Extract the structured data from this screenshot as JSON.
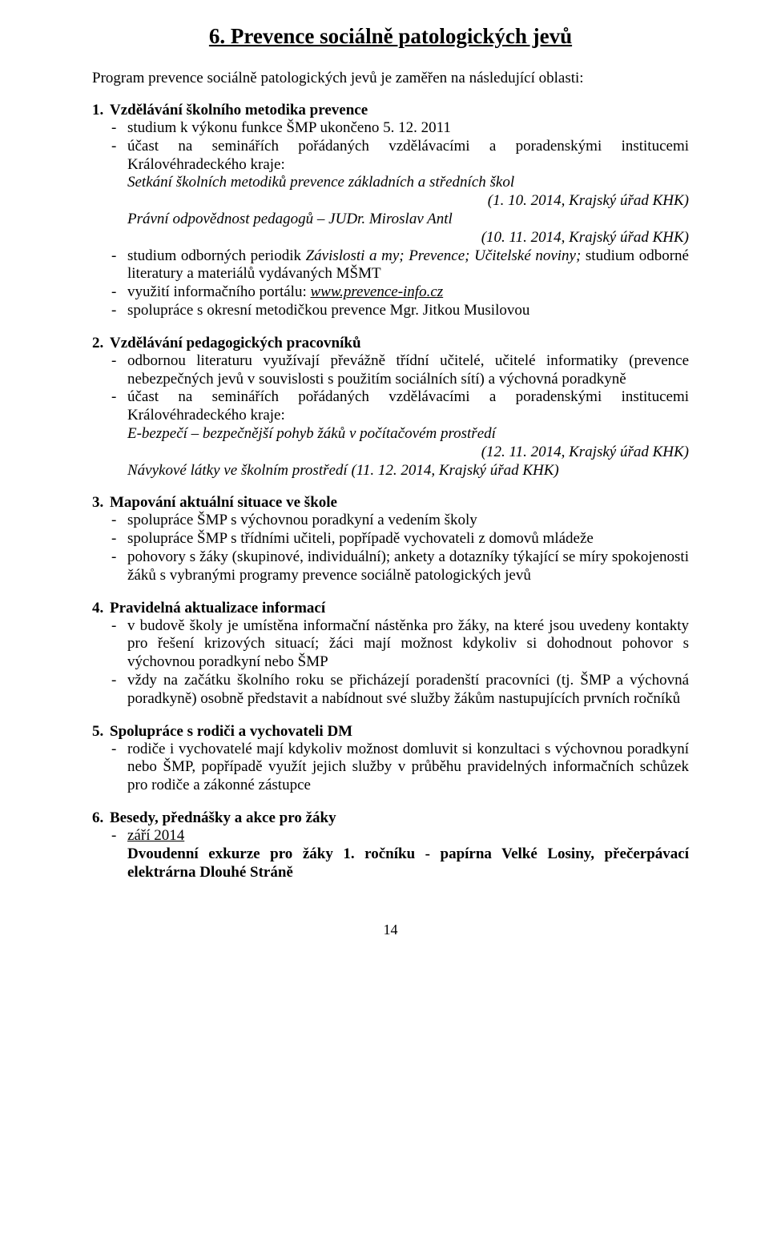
{
  "colors": {
    "background": "#ffffff",
    "text": "#000000"
  },
  "typography": {
    "font_family": "Times New Roman",
    "body_size_pt": 14,
    "title_size_pt": 20
  },
  "page_number": "14",
  "title": "6. Prevence sociálně patologických jevů",
  "intro": "Program prevence sociálně patologických jevů je zaměřen na následující oblasti:",
  "s1": {
    "num": "1.",
    "head": "Vzdělávání školního metodika prevence",
    "i1": "studium k výkonu funkce ŠMP ukončeno 5. 12. 2011",
    "i2": "účast na seminářích pořádaných vzdělávacími a poradenskými institucemi Královéhradeckého kraje:",
    "i2a": "Setkání školních metodiků prevence základních a středních škol",
    "i2a_date": "(1. 10. 2014, Krajský úřad KHK)",
    "i2b": "Právní odpovědnost pedagogů – JUDr. Miroslav Antl",
    "i2b_date": "(10. 11. 2014, Krajský úřad KHK)",
    "i3a": "studium odborných periodik ",
    "i3b": "Závislosti a my; Prevence; Učitelské noviny;",
    "i3c": " studium odborné literatury a materiálů vydávaných MŠMT",
    "i4a": "využití informačního portálu: ",
    "i4b": "www.prevence-info.cz",
    "i5": "spolupráce s okresní metodičkou prevence Mgr. Jitkou Musilovou"
  },
  "s2": {
    "num": "2.",
    "head": "Vzdělávání pedagogických pracovníků",
    "i1": "odbornou literaturu využívají převážně třídní učitelé, učitelé informatiky (prevence nebezpečných jevů v souvislosti s použitím sociálních sítí) a výchovná poradkyně",
    "i2": "účast na seminářích pořádaných vzdělávacími a poradenskými institucemi Královéhradeckého kraje:",
    "i2a": "E-bezpečí – bezpečnější pohyb žáků v počítačovém prostředí",
    "i2a_date": "(12. 11. 2014, Krajský úřad KHK)",
    "i2b": "Návykové látky ve školním prostředí (11. 12. 2014, Krajský úřad KHK)"
  },
  "s3": {
    "num": "3.",
    "head": "Mapování aktuální situace ve škole",
    "i1": "spolupráce ŠMP s výchovnou poradkyní a vedením školy",
    "i2": "spolupráce ŠMP s třídními učiteli, popřípadě vychovateli z domovů mládeže",
    "i3": "pohovory s žáky (skupinové, individuální); ankety a dotazníky týkající se míry spokojenosti žáků s vybranými programy prevence sociálně patologických jevů"
  },
  "s4": {
    "num": "4.",
    "head": "Pravidelná aktualizace informací",
    "i1": "v budově školy je umístěna informační nástěnka pro žáky, na které jsou uvedeny kontakty pro řešení krizových situací; žáci mají možnost kdykoliv si dohodnout pohovor s výchovnou poradkyní nebo ŠMP",
    "i2": "vždy na začátku školního roku se přicházejí poradenští pracovníci (tj. ŠMP a výchovná poradkyně) osobně představit a nabídnout své služby žákům nastupujících prvních ročníků"
  },
  "s5": {
    "num": "5.",
    "head": "Spolupráce s rodiči a vychovateli DM",
    "i1": "rodiče i vychovatelé mají kdykoliv možnost domluvit si konzultaci s výchovnou poradkyní nebo ŠMP, popřípadě využít jejich služby v průběhu pravidelných informačních schůzek pro rodiče a zákonné zástupce"
  },
  "s6": {
    "num": "6.",
    "head": "Besedy, přednášky a akce pro žáky",
    "i1": "září 2014",
    "i1a": "Dvoudenní exkurze pro žáky 1. ročníku - papírna Velké Losiny, přečerpávací elektrárna Dlouhé Stráně"
  }
}
